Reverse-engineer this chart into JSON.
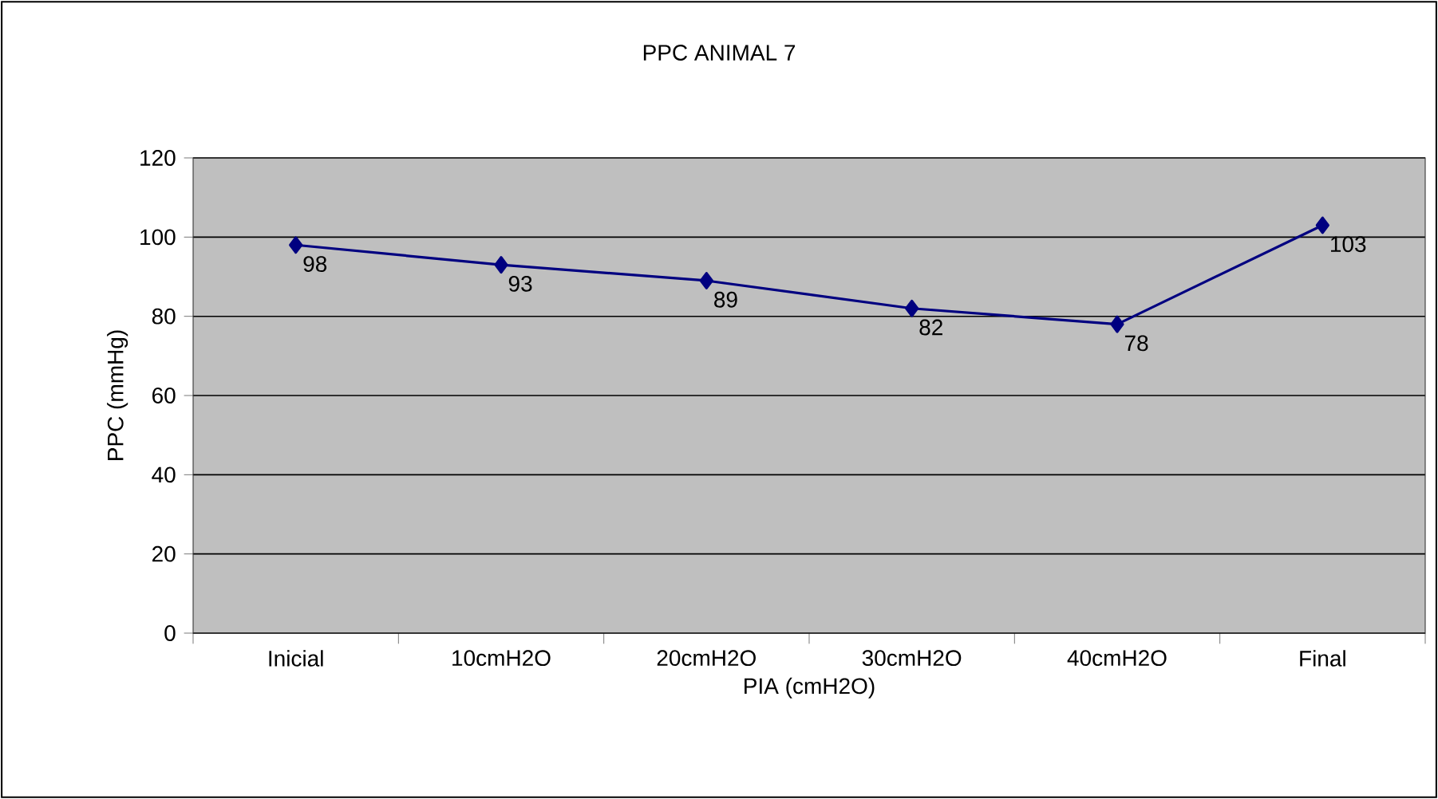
{
  "chart_data": {
    "type": "line",
    "title": "PPC  ANIMAL  7",
    "xlabel": "PIA  (cmH2O)",
    "ylabel": "PPC  (mmHg)",
    "categories": [
      "Inicial",
      "10cmH2O",
      "20cmH2O",
      "30cmH2O",
      "40cmH2O",
      "Final"
    ],
    "series": [
      {
        "color": "#000080",
        "values": [
          98,
          93,
          89,
          82,
          78,
          103
        ]
      }
    ],
    "ylim": [
      0,
      120
    ],
    "yticks": [
      0,
      20,
      40,
      60,
      80,
      100,
      120
    ],
    "grid": "y",
    "marker": "diamond",
    "line_style": "solid",
    "data_labels": true
  }
}
